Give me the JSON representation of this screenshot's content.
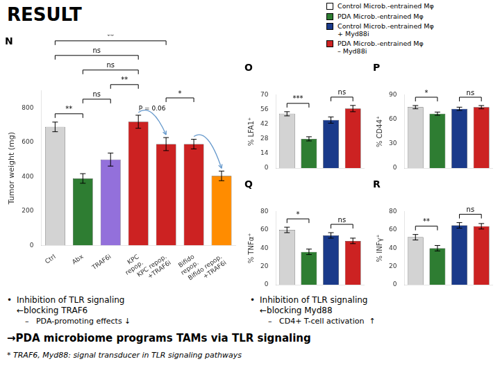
{
  "title": "RESULT",
  "legend_entries": [
    {
      "name": "Control Microb.-entrained Mφ",
      "color": "#ffffff"
    },
    {
      "name": "PDA Microb.-entrained Mφ",
      "color": "#2e7d32"
    },
    {
      "name": "Control Microb.-entrained Mφ\n+ Myd88i",
      "color": "#1a3a8a"
    },
    {
      "name": "PDA Microb.-entrained Mφ\n– Myd88i",
      "color": "#cc2222"
    }
  ],
  "annotations": [
    {
      "bullet": "•",
      "lines": [
        "Inhibition of TLR signaling",
        "←blocking TRAF6"
      ],
      "sub": "–   PDA-promoting effects ↓"
    },
    {
      "bullet": "•",
      "lines": [
        "Inhibition of TLR signaling",
        "←blocking Myd88"
      ],
      "sub": "–   CD4+ T-cell activation  ↑"
    }
  ],
  "conclusion": "→PDA microbiome programs TAMs via TLR signaling",
  "footnote": "* TRAF6, Myd88: signal transducer in TLR signaling pathways",
  "chart_data": [
    {
      "type": "bar",
      "title": "N",
      "y_label": "Tumor weight (mg)",
      "categories": [
        "Ctrl",
        "Abx",
        "TRAF6i",
        "KPC\nrepop.",
        "KPC repop.\n+TRAF6i",
        "Bifido\nrepop.",
        "Bifido repop.\n+TRAF6i"
      ],
      "values": [
        690,
        390,
        500,
        720,
        590,
        590,
        405
      ],
      "errors": [
        28,
        28,
        38,
        38,
        38,
        28,
        28
      ],
      "colors": [
        "#d3d3d3",
        "#2e7d32",
        "#9370db",
        "#cc2222",
        "#cc2222",
        "#cc2222",
        "#ff8c00"
      ],
      "ylim": [
        0,
        900
      ],
      "yticks": [
        0,
        200,
        400,
        600,
        800
      ],
      "grid": false,
      "brackets": [
        {
          "from": 0,
          "to": 1,
          "text": "**"
        },
        {
          "from": 1,
          "to": 2,
          "text": "ns"
        },
        {
          "from": 2,
          "to": 3,
          "text": "**"
        },
        {
          "from": 1,
          "to": 3,
          "text": "ns"
        },
        {
          "from": 0,
          "to": 4,
          "text": "**"
        },
        {
          "from": 0,
          "to": 3,
          "text": "ns"
        },
        {
          "from": 4,
          "to": 5,
          "text": "*"
        }
      ],
      "arrows": [
        {
          "from": 3,
          "to": 4,
          "label": "P = 0.06",
          "color": "#6699cc"
        },
        {
          "from": 5,
          "to": 6,
          "color": "#6699cc"
        }
      ]
    },
    {
      "type": "bar",
      "title": "O",
      "y_label": "% LFA1⁺",
      "values": [
        52,
        28,
        46,
        57
      ],
      "errors": [
        2,
        2,
        3,
        3
      ],
      "colors": [
        "#d3d3d3",
        "#2e7d32",
        "#1a3a8a",
        "#cc2222"
      ],
      "ylim": [
        0,
        70
      ],
      "yticks": [
        0,
        14,
        28,
        42,
        56,
        70
      ],
      "grid": false,
      "tick_labels": "y",
      "brackets": [
        {
          "from": 0,
          "to": 1,
          "text": "***"
        },
        {
          "from": 2,
          "to": 3,
          "text": "ns"
        }
      ]
    },
    {
      "type": "bar",
      "title": "P",
      "y_label": "% CD44⁺",
      "values": [
        75,
        67,
        73,
        75
      ],
      "errors": [
        2,
        2,
        2,
        2
      ],
      "colors": [
        "#d3d3d3",
        "#2e7d32",
        "#1a3a8a",
        "#cc2222"
      ],
      "ylim": [
        0,
        90
      ],
      "yticks": [
        0,
        30,
        60,
        90
      ],
      "grid": false,
      "tick_labels": "y",
      "brackets": [
        {
          "from": 0,
          "to": 1,
          "text": "*"
        },
        {
          "from": 2,
          "to": 3,
          "text": "ns"
        }
      ]
    },
    {
      "type": "bar",
      "title": "Q",
      "y_label": "% TNFα⁺",
      "values": [
        60,
        36,
        54,
        48
      ],
      "errors": [
        3,
        3,
        3,
        3
      ],
      "colors": [
        "#d3d3d3",
        "#2e7d32",
        "#1a3a8a",
        "#cc2222"
      ],
      "ylim": [
        0,
        80
      ],
      "yticks": [
        0,
        20,
        40,
        60,
        80
      ],
      "grid": false,
      "tick_labels": "y",
      "brackets": [
        {
          "from": 0,
          "to": 1,
          "text": "*"
        },
        {
          "from": 2,
          "to": 3,
          "text": "ns"
        }
      ]
    },
    {
      "type": "bar",
      "title": "R",
      "y_label": "% INFγ⁺",
      "values": [
        52,
        40,
        65,
        64
      ],
      "errors": [
        3,
        3,
        3,
        3
      ],
      "colors": [
        "#d3d3d3",
        "#2e7d32",
        "#1a3a8a",
        "#cc2222"
      ],
      "ylim": [
        0,
        80
      ],
      "yticks": [
        0,
        20,
        40,
        60,
        80
      ],
      "grid": false,
      "tick_labels": "y",
      "brackets": [
        {
          "from": 0,
          "to": 1,
          "text": "**"
        },
        {
          "from": 2,
          "to": 3,
          "text": "ns"
        }
      ]
    }
  ]
}
